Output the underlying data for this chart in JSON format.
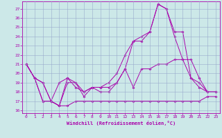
{
  "xlabel": "Windchill (Refroidissement éolien,°C)",
  "xlim_min": -0.5,
  "xlim_max": 23.5,
  "ylim_min": 15.7,
  "ylim_max": 27.8,
  "yticks": [
    16,
    17,
    18,
    19,
    20,
    21,
    22,
    23,
    24,
    25,
    26,
    27
  ],
  "xticks": [
    0,
    1,
    2,
    3,
    4,
    5,
    6,
    7,
    8,
    9,
    10,
    11,
    12,
    13,
    14,
    15,
    16,
    17,
    18,
    19,
    20,
    21,
    22,
    23
  ],
  "bg_color": "#cce8e8",
  "line_color": "#aa00aa",
  "grid_color": "#99aacc",
  "line1_x": [
    0,
    1,
    2,
    3,
    4,
    5,
    6,
    7,
    8,
    9,
    10,
    11,
    12,
    13,
    14,
    15,
    16,
    17,
    18,
    19,
    20,
    21,
    22,
    23
  ],
  "line1_y": [
    21.0,
    19.5,
    17.0,
    17.0,
    16.5,
    16.5,
    17.0,
    17.0,
    17.0,
    17.0,
    17.0,
    17.0,
    17.0,
    17.0,
    17.0,
    17.0,
    17.0,
    17.0,
    17.0,
    17.0,
    17.0,
    17.0,
    17.5,
    17.5
  ],
  "line2_x": [
    0,
    1,
    2,
    3,
    4,
    5,
    6,
    7,
    8,
    9,
    10,
    11,
    12,
    13,
    14,
    15,
    16,
    17,
    18,
    19,
    20,
    21,
    22,
    23
  ],
  "line2_y": [
    21.0,
    19.5,
    19.0,
    17.0,
    16.5,
    19.5,
    18.5,
    18.0,
    18.5,
    18.5,
    18.5,
    19.0,
    20.5,
    18.5,
    20.5,
    20.5,
    21.0,
    21.0,
    21.5,
    21.5,
    19.5,
    18.5,
    18.0,
    18.0
  ],
  "line3_x": [
    0,
    1,
    2,
    3,
    4,
    5,
    6,
    7,
    8,
    9,
    10,
    11,
    12,
    13,
    14,
    15,
    16,
    17,
    18,
    19,
    20,
    21,
    22,
    23
  ],
  "line3_y": [
    21.0,
    19.5,
    17.0,
    17.0,
    19.0,
    19.5,
    19.0,
    17.5,
    18.5,
    18.5,
    19.0,
    20.0,
    22.0,
    23.5,
    23.5,
    24.5,
    27.5,
    27.0,
    24.5,
    24.5,
    19.5,
    19.0,
    18.0,
    18.0
  ],
  "line4_x": [
    0,
    1,
    2,
    3,
    4,
    5,
    6,
    7,
    8,
    9,
    10,
    11,
    12,
    13,
    14,
    15,
    16,
    17,
    18,
    19,
    20,
    21,
    22,
    23
  ],
  "line4_y": [
    21.0,
    19.5,
    19.0,
    17.0,
    16.5,
    19.0,
    19.0,
    18.0,
    18.5,
    18.0,
    18.0,
    19.0,
    20.5,
    23.5,
    24.0,
    24.5,
    27.5,
    27.0,
    24.0,
    21.5,
    21.5,
    19.5,
    18.0,
    18.0
  ]
}
